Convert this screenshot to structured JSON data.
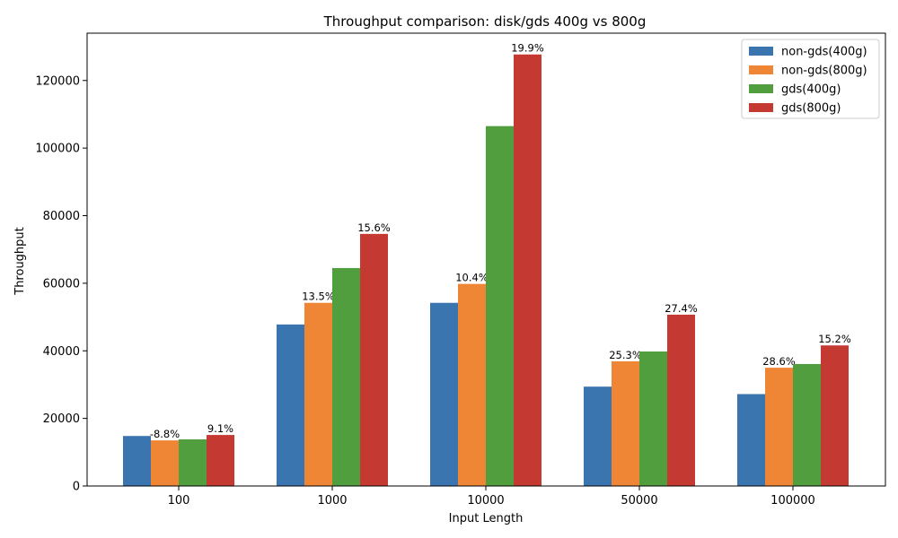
{
  "chart_data": {
    "type": "bar",
    "title": "Throughput comparison: disk/gds 400g vs 800g",
    "xlabel": "Input Length",
    "ylabel": "Throughput",
    "categories": [
      "100",
      "1000",
      "10000",
      "50000",
      "100000"
    ],
    "ylim": [
      0,
      134000
    ],
    "yticks": [
      0,
      20000,
      40000,
      60000,
      80000,
      100000,
      120000
    ],
    "grid": false,
    "legend_position": "top-right",
    "series": [
      {
        "name": "non-gds(400g)",
        "color": "#3b75af",
        "values": [
          14800,
          47800,
          54200,
          29400,
          27200
        ],
        "labels": [
          "",
          "",
          "",
          "",
          ""
        ]
      },
      {
        "name": "non-gds(800g)",
        "color": "#ef8636",
        "values": [
          13500,
          54200,
          59800,
          36900,
          35000
        ],
        "labels": [
          "-8.8%",
          "13.5%",
          "10.4%",
          "25.3%",
          "28.6%"
        ]
      },
      {
        "name": "gds(400g)",
        "color": "#519e3e",
        "values": [
          13800,
          64500,
          106500,
          39800,
          36100
        ],
        "labels": [
          "",
          "",
          "",
          "",
          ""
        ]
      },
      {
        "name": "gds(800g)",
        "color": "#c43a32",
        "values": [
          15100,
          74600,
          127700,
          50700,
          41600
        ],
        "labels": [
          "9.1%",
          "15.6%",
          "19.9%",
          "27.4%",
          "15.2%"
        ]
      }
    ]
  }
}
